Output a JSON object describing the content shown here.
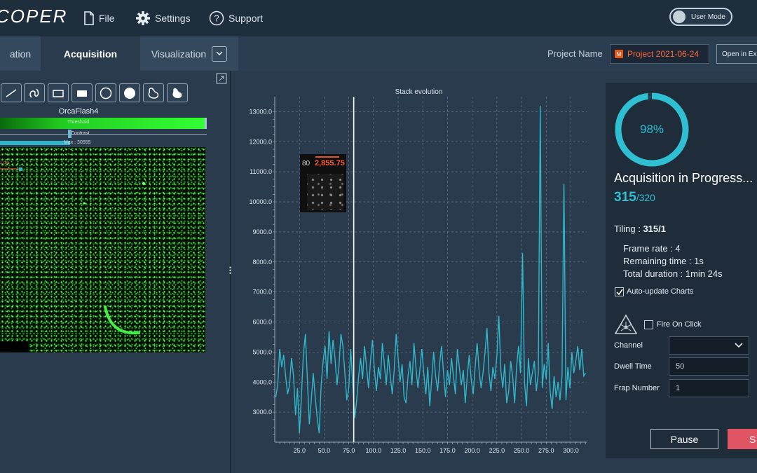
{
  "app": {
    "brand": "COPER"
  },
  "menu": {
    "file": "File",
    "settings": "Settings",
    "support": "Support"
  },
  "user_mode": {
    "label": "User Mode"
  },
  "tabs": [
    {
      "label": "ation"
    },
    {
      "label": "Acquisition"
    },
    {
      "label": "Visualization"
    }
  ],
  "project": {
    "label": "Project Name",
    "value": "Project 2021-06-24",
    "badge": "M",
    "open_label": "Open in Exp"
  },
  "camera": {
    "name": "OrcaFlash4",
    "threshold_label": "Threshold",
    "contrast_label": "Contrast",
    "max_label": "Max : 30555",
    "scale_label": "1 µm"
  },
  "tools": [
    "line",
    "freehand",
    "rectangle",
    "filled-rectangle",
    "circle",
    "filled-circle",
    "polygon",
    "filled-polygon"
  ],
  "chart_data": {
    "type": "line",
    "title": "Stack evolution",
    "xlabel": "",
    "ylabel": "",
    "xlim": [
      0,
      316
    ],
    "ylim": [
      2000,
      13500
    ],
    "xticks": [
      25,
      50,
      75,
      100,
      125,
      150,
      175,
      200,
      225,
      250,
      275,
      300
    ],
    "xtick_labels": [
      "25.0",
      "50.0",
      "75.0",
      "100.0",
      "125.0",
      "150.0",
      "175.0",
      "200.0",
      "225.0",
      "250.0",
      "275.0",
      "300.0"
    ],
    "yticks": [
      3000,
      4000,
      5000,
      6000,
      7000,
      8000,
      9000,
      10000,
      11000,
      12000,
      13000
    ],
    "ytick_labels": [
      "3000.0",
      "4000.0",
      "5000.0",
      "6000.0",
      "7000.0",
      "8000.0",
      "9000.0",
      "10000.0",
      "11000.0",
      "12000.0",
      "13000.0"
    ],
    "grid": true,
    "cursor_x": 80,
    "color": "#2fb8cc",
    "series": [
      {
        "points": [
          [
            1,
            3500
          ],
          [
            3,
            3900
          ],
          [
            5,
            5100
          ],
          [
            7,
            4500
          ],
          [
            9,
            4900
          ],
          [
            11,
            4200
          ],
          [
            13,
            3600
          ],
          [
            15,
            3900
          ],
          [
            17,
            4800
          ],
          [
            19,
            4200
          ],
          [
            21,
            2900
          ],
          [
            23,
            3800
          ],
          [
            25,
            2300
          ],
          [
            27,
            3500
          ],
          [
            29,
            4900
          ],
          [
            31,
            5600
          ],
          [
            33,
            4100
          ],
          [
            35,
            2600
          ],
          [
            37,
            3400
          ],
          [
            39,
            4300
          ],
          [
            41,
            3500
          ],
          [
            43,
            2800
          ],
          [
            45,
            2300
          ],
          [
            47,
            3900
          ],
          [
            49,
            4700
          ],
          [
            51,
            5200
          ],
          [
            53,
            4100
          ],
          [
            55,
            5700
          ],
          [
            57,
            4600
          ],
          [
            59,
            5400
          ],
          [
            61,
            4800
          ],
          [
            63,
            3900
          ],
          [
            65,
            4500
          ],
          [
            67,
            5600
          ],
          [
            69,
            5200
          ],
          [
            71,
            4300
          ],
          [
            73,
            3400
          ],
          [
            75,
            3800
          ],
          [
            77,
            5100
          ],
          [
            79,
            3900
          ],
          [
            81,
            2800
          ],
          [
            83,
            3400
          ],
          [
            85,
            4200
          ],
          [
            87,
            4800
          ],
          [
            89,
            4100
          ],
          [
            91,
            5200
          ],
          [
            93,
            4500
          ],
          [
            95,
            3800
          ],
          [
            97,
            4700
          ],
          [
            99,
            5400
          ],
          [
            101,
            4400
          ],
          [
            103,
            3700
          ],
          [
            105,
            4500
          ],
          [
            107,
            4100
          ],
          [
            109,
            5300
          ],
          [
            111,
            4600
          ],
          [
            113,
            3900
          ],
          [
            115,
            4900
          ],
          [
            117,
            4200
          ],
          [
            119,
            3600
          ],
          [
            121,
            4400
          ],
          [
            123,
            5600
          ],
          [
            125,
            4800
          ],
          [
            127,
            4000
          ],
          [
            129,
            4600
          ],
          [
            131,
            3500
          ],
          [
            133,
            3300
          ],
          [
            135,
            4200
          ],
          [
            137,
            4700
          ],
          [
            139,
            3900
          ],
          [
            141,
            5300
          ],
          [
            143,
            4500
          ],
          [
            145,
            3800
          ],
          [
            147,
            4400
          ],
          [
            149,
            5100
          ],
          [
            151,
            4300
          ],
          [
            153,
            3600
          ],
          [
            155,
            4500
          ],
          [
            157,
            3200
          ],
          [
            159,
            4100
          ],
          [
            161,
            5000
          ],
          [
            163,
            4200
          ],
          [
            165,
            3700
          ],
          [
            167,
            4600
          ],
          [
            169,
            5200
          ],
          [
            171,
            4300
          ],
          [
            173,
            3500
          ],
          [
            175,
            4400
          ],
          [
            177,
            3900
          ],
          [
            179,
            4800
          ],
          [
            181,
            4200
          ],
          [
            183,
            3600
          ],
          [
            185,
            5100
          ],
          [
            187,
            4500
          ],
          [
            189,
            3900
          ],
          [
            191,
            4400
          ],
          [
            193,
            3300
          ],
          [
            195,
            4200
          ],
          [
            197,
            4900
          ],
          [
            199,
            4100
          ],
          [
            201,
            3600
          ],
          [
            203,
            4500
          ],
          [
            205,
            5300
          ],
          [
            207,
            4400
          ],
          [
            209,
            3800
          ],
          [
            211,
            4300
          ],
          [
            213,
            5000
          ],
          [
            215,
            5800
          ],
          [
            217,
            4300
          ],
          [
            219,
            3700
          ],
          [
            221,
            4500
          ],
          [
            223,
            4100
          ],
          [
            225,
            4900
          ],
          [
            227,
            6200
          ],
          [
            229,
            4400
          ],
          [
            231,
            3800
          ],
          [
            233,
            4600
          ],
          [
            235,
            3300
          ],
          [
            237,
            3700
          ],
          [
            239,
            4700
          ],
          [
            241,
            4200
          ],
          [
            243,
            3300
          ],
          [
            245,
            4500
          ],
          [
            247,
            5200
          ],
          [
            249,
            4300
          ],
          [
            251,
            8300
          ],
          [
            253,
            4000
          ],
          [
            255,
            3200
          ],
          [
            257,
            4800
          ],
          [
            259,
            3900
          ],
          [
            261,
            4300
          ],
          [
            263,
            4700
          ],
          [
            265,
            3700
          ],
          [
            267,
            4300
          ],
          [
            269,
            13200
          ],
          [
            271,
            3800
          ],
          [
            273,
            4600
          ],
          [
            275,
            4100
          ],
          [
            277,
            5300
          ],
          [
            279,
            3700
          ],
          [
            281,
            3100
          ],
          [
            283,
            4200
          ],
          [
            285,
            3500
          ],
          [
            287,
            4000
          ],
          [
            289,
            3400
          ],
          [
            291,
            4200
          ],
          [
            293,
            10600
          ],
          [
            295,
            3400
          ],
          [
            297,
            4500
          ],
          [
            299,
            3800
          ],
          [
            301,
            5000
          ],
          [
            303,
            4300
          ],
          [
            305,
            4700
          ],
          [
            307,
            5200
          ],
          [
            309,
            4400
          ],
          [
            311,
            5100
          ],
          [
            313,
            4200
          ],
          [
            315,
            4300
          ]
        ]
      }
    ]
  },
  "tooltip": {
    "index": "80",
    "value": "2,855.75"
  },
  "progress": {
    "percent": 98,
    "percent_label": "98%",
    "title": "Acquisition in Progress...",
    "current": "315",
    "total": "/320",
    "tiling_label": "Tiling :",
    "tiling_value": "315/1",
    "frame_rate": "Frame rate : 4",
    "remaining": "Remaining time : 1s",
    "duration": "Total duration : 1min 24s",
    "auto_update": "Auto-update Charts",
    "fire_on_click": "Fire On Click",
    "colors": {
      "accent": "#2fbfd3",
      "stop": "#e05464"
    }
  },
  "form": {
    "channel_label": "Channel",
    "channel_value": "",
    "dwell_label": "Dwell Time",
    "dwell_value": "50",
    "frap_label": "Frap Number",
    "frap_value": "1"
  },
  "buttons": {
    "pause": "Pause",
    "stop": "S"
  }
}
